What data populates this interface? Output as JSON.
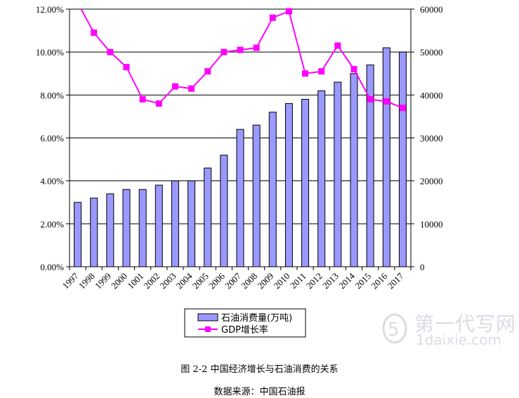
{
  "chart_data": {
    "type": "bar+line",
    "categories": [
      "1997",
      "1998",
      "1999",
      "2000",
      "1001",
      "2002",
      "2003",
      "2004",
      "2005",
      "2006",
      "2007",
      "2008",
      "2009",
      "2010",
      "2011",
      "2012",
      "2013",
      "2014",
      "2015",
      "2016",
      "2017"
    ],
    "series": [
      {
        "name": "石油消费量(万吨)",
        "type": "bar",
        "axis": "right",
        "color": "#9999ff",
        "values": [
          15000,
          16000,
          17000,
          18000,
          18000,
          19000,
          20000,
          20000,
          23000,
          26000,
          32000,
          33000,
          36000,
          38000,
          39000,
          41000,
          43000,
          45000,
          47000,
          51000,
          50000
        ]
      },
      {
        "name": "GDP增长率",
        "type": "line",
        "axis": "left",
        "color": "#ff00ff",
        "values": [
          12.3,
          10.9,
          10.0,
          9.3,
          7.8,
          7.6,
          8.4,
          8.3,
          9.1,
          10.0,
          10.1,
          10.2,
          11.6,
          11.9,
          9.0,
          9.1,
          10.3,
          9.2,
          7.8,
          7.7,
          7.4
        ]
      }
    ],
    "y_left": {
      "min": 0,
      "max": 12,
      "ticks": [
        "0.00%",
        "2.00%",
        "4.00%",
        "6.00%",
        "8.00%",
        "10.00%",
        "12.00%"
      ]
    },
    "y_right": {
      "min": 0,
      "max": 60000,
      "ticks": [
        "0",
        "10000",
        "20000",
        "30000",
        "40000",
        "50000",
        "60000"
      ]
    },
    "grid": true,
    "legend_placement": "bottom"
  },
  "caption": {
    "title": "图 2-2  中国经济增长与石油消费的关系",
    "source": "数据来源：中国石油报"
  },
  "watermark": {
    "cn": "第一代写网",
    "en": "1daixie.com"
  }
}
